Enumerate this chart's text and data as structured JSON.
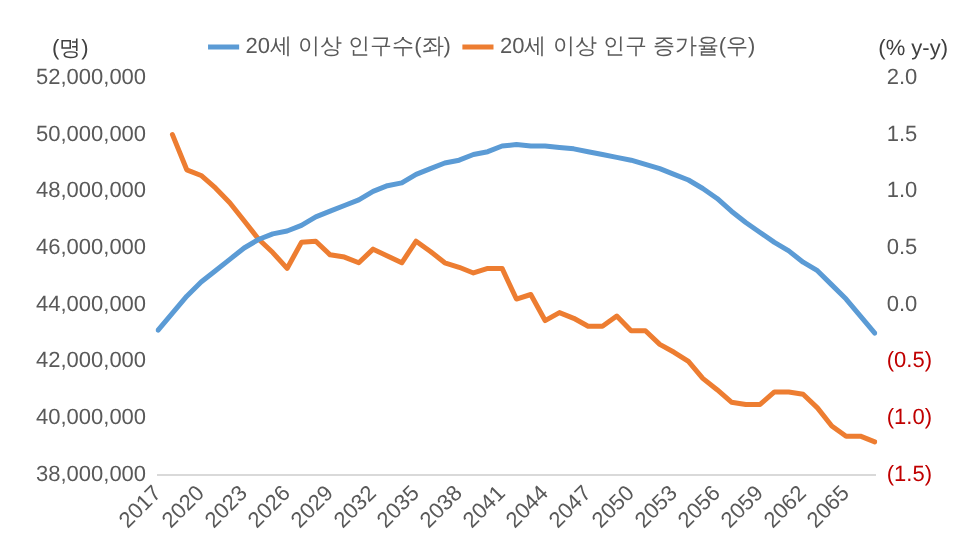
{
  "chart_data": {
    "type": "line",
    "ylabel": "(명)",
    "y2label": "(% y-y)",
    "legend": "top",
    "grid": false,
    "marker": "none",
    "line_style": "solid",
    "categories": [
      "2017",
      null,
      null,
      "2020",
      null,
      null,
      "2023",
      null,
      null,
      "2026",
      null,
      null,
      "2029",
      null,
      null,
      "2032",
      null,
      null,
      "2035",
      null,
      null,
      "2038",
      null,
      null,
      "2041",
      null,
      null,
      "2044",
      null,
      null,
      "2047",
      null,
      null,
      "2050",
      null,
      null,
      "2053",
      null,
      null,
      "2056",
      null,
      null,
      "2059",
      null,
      null,
      "2062",
      null,
      null,
      "2065",
      null,
      null
    ],
    "series": [
      {
        "name": "20세 이상 인구수(좌)",
        "color": "#5b9bd5",
        "values": [
          43100000,
          43700000,
          44300000,
          44800000,
          45200000,
          45600000,
          46000000,
          46300000,
          46500000,
          46600000,
          46800000,
          47100000,
          47300000,
          47500000,
          47700000,
          48000000,
          48200000,
          48300000,
          48600000,
          48800000,
          49000000,
          49100000,
          49300000,
          49400000,
          49600000,
          49650000,
          49600000,
          49600000,
          49550000,
          49500000,
          49400000,
          49300000,
          49200000,
          49100000,
          48950000,
          48800000,
          48600000,
          48400000,
          48100000,
          47750000,
          47300000,
          46900000,
          46550000,
          46200000,
          45900000,
          45500000,
          45200000,
          44700000,
          44200000,
          43600000,
          43000000
        ]
      },
      {
        "name": "20세 이상 인구 증가율(우)",
        "color": "#ed7d31",
        "axis": "y2",
        "values": [
          null,
          1.5,
          1.19,
          1.14,
          1.03,
          0.9,
          0.74,
          0.58,
          0.46,
          0.32,
          0.55,
          0.56,
          0.44,
          0.42,
          0.37,
          0.49,
          0.43,
          0.37,
          0.56,
          0.47,
          0.37,
          0.33,
          0.28,
          0.32,
          0.32,
          0.05,
          0.09,
          -0.14,
          -0.07,
          -0.12,
          -0.19,
          -0.19,
          -0.1,
          -0.23,
          -0.23,
          -0.35,
          -0.42,
          -0.5,
          -0.65,
          -0.75,
          -0.86,
          -0.88,
          -0.88,
          -0.77,
          -0.77,
          -0.79,
          -0.91,
          -1.07,
          -1.16,
          -1.16,
          -1.21
        ]
      }
    ],
    "ylim": [
      38000000,
      52000000
    ],
    "yticks": [
      {
        "value": 38000000,
        "label": "38,000,000"
      },
      {
        "value": 40000000,
        "label": "40,000,000"
      },
      {
        "value": 42000000,
        "label": "42,000,000"
      },
      {
        "value": 44000000,
        "label": "44,000,000"
      },
      {
        "value": 46000000,
        "label": "46,000,000"
      },
      {
        "value": 48000000,
        "label": "48,000,000"
      },
      {
        "value": 50000000,
        "label": "50,000,000"
      },
      {
        "value": 52000000,
        "label": "52,000,000"
      }
    ],
    "y2lim": [
      -1.5,
      2.0
    ],
    "y2ticks": [
      {
        "value": -1.5,
        "label": "(1.5)"
      },
      {
        "value": -1.0,
        "label": "(1.0)"
      },
      {
        "value": -0.5,
        "label": "(0.5)"
      },
      {
        "value": 0,
        "label": "0.0"
      },
      {
        "value": 0.5,
        "label": "0.5"
      },
      {
        "value": 1.0,
        "label": "1.0"
      },
      {
        "value": 1.5,
        "label": "1.5"
      },
      {
        "value": 2.0,
        "label": "2.0"
      }
    ]
  }
}
